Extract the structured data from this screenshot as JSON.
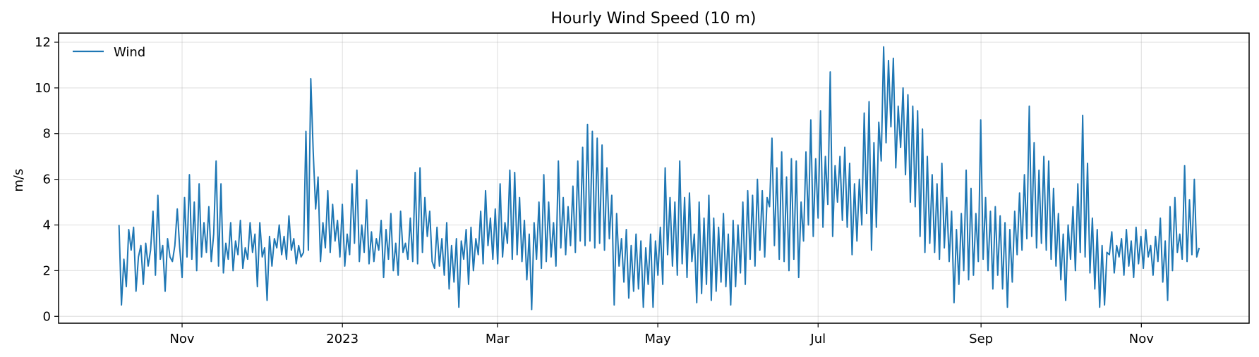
{
  "chart_data": {
    "type": "line",
    "title": "Hourly Wind Speed (10 m)",
    "xlabel": "",
    "ylabel": "m/s",
    "x_range": [
      "2022-09-15",
      "2023-12-12"
    ],
    "ylim": [
      -0.3,
      12.4
    ],
    "y_ticks": [
      0,
      2,
      4,
      6,
      8,
      10,
      12
    ],
    "x_ticks": [
      {
        "date": "2022-11-01",
        "label": "Nov"
      },
      {
        "date": "2023-01-01",
        "label": "2023"
      },
      {
        "date": "2023-03-01",
        "label": "Mar"
      },
      {
        "date": "2023-05-01",
        "label": "May"
      },
      {
        "date": "2023-07-01",
        "label": "Jul"
      },
      {
        "date": "2023-09-01",
        "label": "Sep"
      },
      {
        "date": "2023-11-01",
        "label": "Nov"
      }
    ],
    "grid": true,
    "legend": "top-left",
    "series": [
      {
        "name": "Wind",
        "color": "#1f77b4",
        "x_start": "2022-10-08",
        "x_end": "2023-11-23",
        "values": [
          4.0,
          0.5,
          2.5,
          1.3,
          3.8,
          2.9,
          3.9,
          1.1,
          2.6,
          3.1,
          1.4,
          3.2,
          2.2,
          2.9,
          4.6,
          1.8,
          5.3,
          2.5,
          3.1,
          1.1,
          3.4,
          2.6,
          2.4,
          3.1,
          4.7,
          3.0,
          1.7,
          5.2,
          2.6,
          6.2,
          2.5,
          5.0,
          2.0,
          5.8,
          2.6,
          4.1,
          2.8,
          4.8,
          2.4,
          3.6,
          6.8,
          2.2,
          5.8,
          1.9,
          3.2,
          2.5,
          4.1,
          2.0,
          3.3,
          2.7,
          4.2,
          2.1,
          3.0,
          2.5,
          4.1,
          2.8,
          3.6,
          1.3,
          4.1,
          2.6,
          3.0,
          0.7,
          3.5,
          2.2,
          3.4,
          3.0,
          4.0,
          2.7,
          3.5,
          2.5,
          4.4,
          2.9,
          3.4,
          2.3,
          3.1,
          2.6,
          2.8,
          8.1,
          2.9,
          10.4,
          7.2,
          4.7,
          6.1,
          2.4,
          4.1,
          3.0,
          5.5,
          2.8,
          4.9,
          3.3,
          4.2,
          2.6,
          4.9,
          2.2,
          3.6,
          2.7,
          5.8,
          3.2,
          6.4,
          2.4,
          4.0,
          2.8,
          5.1,
          2.3,
          3.7,
          2.4,
          3.4,
          2.9,
          4.2,
          1.7,
          3.8,
          2.5,
          4.5,
          2.0,
          3.2,
          1.8,
          4.6,
          2.8,
          3.2,
          2.5,
          4.3,
          2.4,
          6.3,
          2.3,
          6.5,
          2.8,
          5.2,
          3.5,
          4.6,
          2.4,
          2.1,
          3.9,
          2.2,
          3.4,
          1.8,
          4.1,
          1.2,
          3.1,
          1.5,
          3.4,
          0.4,
          3.3,
          2.5,
          3.8,
          1.4,
          3.9,
          2.0,
          3.4,
          2.7,
          4.6,
          2.3,
          5.5,
          3.1,
          4.3,
          2.5,
          4.7,
          2.3,
          5.8,
          2.6,
          4.1,
          3.2,
          6.4,
          2.5,
          6.3,
          2.7,
          5.2,
          2.4,
          4.2,
          1.6,
          3.6,
          0.3,
          4.1,
          2.5,
          5.0,
          2.1,
          6.2,
          2.4,
          5.0,
          2.6,
          4.1,
          2.2,
          6.8,
          3.0,
          5.2,
          2.7,
          4.8,
          3.1,
          5.7,
          2.8,
          6.8,
          3.3,
          7.4,
          3.1,
          8.4,
          3.3,
          8.1,
          3.0,
          7.8,
          3.2,
          7.5,
          2.9,
          6.5,
          3.4,
          5.3,
          0.5,
          4.5,
          2.2,
          3.4,
          1.5,
          3.8,
          0.8,
          3.1,
          1.1,
          3.6,
          1.2,
          3.3,
          0.4,
          3.0,
          1.4,
          3.6,
          0.4,
          3.3,
          1.8,
          3.9,
          1.4,
          6.5,
          2.7,
          5.2,
          2.2,
          5.0,
          1.8,
          6.8,
          2.3,
          5.2,
          1.7,
          5.4,
          2.4,
          3.6,
          0.6,
          5.0,
          1.0,
          4.3,
          1.4,
          5.3,
          0.7,
          4.3,
          1.1,
          3.9,
          1.5,
          4.5,
          1.3,
          3.6,
          0.5,
          4.2,
          1.3,
          4.0,
          1.9,
          5.0,
          1.4,
          5.5,
          2.5,
          5.3,
          2.2,
          6.0,
          2.9,
          5.5,
          2.6,
          5.2,
          4.8,
          7.8,
          3.1,
          6.5,
          2.5,
          7.2,
          2.4,
          6.1,
          2.0,
          6.9,
          2.5,
          6.8,
          1.7,
          5.0,
          3.3,
          7.2,
          4.0,
          8.6,
          3.5,
          6.9,
          4.3,
          9.0,
          3.9,
          7.0,
          4.9,
          10.7,
          3.5,
          6.6,
          5.0,
          7.0,
          4.2,
          7.4,
          3.9,
          6.7,
          2.7,
          5.8,
          3.3,
          6.0,
          4.0,
          8.9,
          4.5,
          9.4,
          2.9,
          7.6,
          3.9,
          8.5,
          6.8,
          11.8,
          7.6,
          11.2,
          8.3,
          11.3,
          6.5,
          9.2,
          7.4,
          10.0,
          6.2,
          9.7,
          5.0,
          9.2,
          4.8,
          9.0,
          3.5,
          8.2,
          2.8,
          7.0,
          3.2,
          6.2,
          2.8,
          5.8,
          2.5,
          6.7,
          3.0,
          5.2,
          2.4,
          4.6,
          0.6,
          3.8,
          1.4,
          4.5,
          2.0,
          6.4,
          1.6,
          5.6,
          1.8,
          4.5,
          2.4,
          8.6,
          2.5,
          5.2,
          2.0,
          4.6,
          1.2,
          4.8,
          1.8,
          4.4,
          1.2,
          4.1,
          0.4,
          3.8,
          1.5,
          4.6,
          2.7,
          5.4,
          2.9,
          6.2,
          3.4,
          9.2,
          3.5,
          7.6,
          3.0,
          6.4,
          3.2,
          7.0,
          2.9,
          6.8,
          2.5,
          5.6,
          2.2,
          4.5,
          1.6,
          3.6,
          0.7,
          4.0,
          2.5,
          4.8,
          2.0,
          5.8,
          2.8,
          8.8,
          2.6,
          6.7,
          1.9,
          4.3,
          1.2,
          3.8,
          0.4,
          3.1,
          0.5,
          2.8,
          2.7,
          3.7,
          1.9,
          3.1,
          2.6,
          3.4,
          1.8,
          3.8,
          2.2,
          3.3,
          1.7,
          3.9,
          2.3,
          3.5,
          2.1,
          3.8,
          2.6,
          3.1,
          1.8,
          3.5,
          2.4,
          4.3,
          1.5,
          3.3,
          0.7,
          4.8,
          2.0,
          5.2,
          2.8,
          3.6,
          2.5,
          6.6,
          2.4,
          5.1,
          2.7,
          6.0,
          2.6,
          3.0
        ]
      }
    ]
  }
}
